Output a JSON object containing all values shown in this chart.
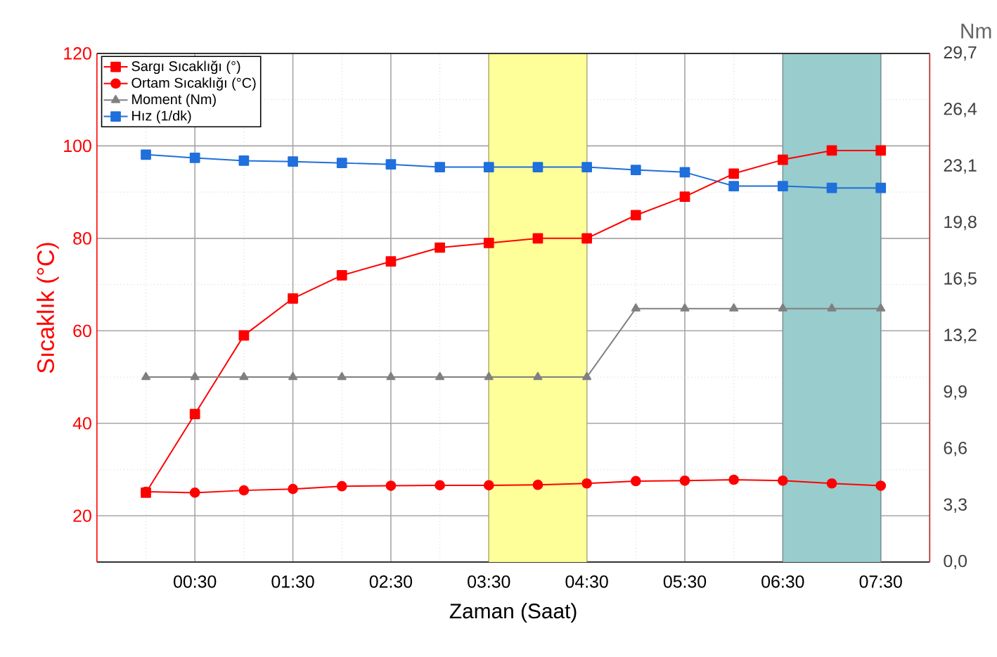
{
  "chart_data": {
    "type": "line",
    "xlabel": "Zaman (Saat)",
    "ylabel": "Sıcaklık (°C)",
    "y2label": "Nm",
    "x": [
      0,
      0.5,
      1,
      1.5,
      2,
      2.5,
      3,
      3.5,
      4,
      4.5,
      5,
      5.5,
      6,
      6.5,
      7,
      7.5
    ],
    "xlim": [
      -0.5,
      8
    ],
    "xticks": [
      {
        "value": 0.5,
        "label": "00:30"
      },
      {
        "value": 1.5,
        "label": "01:30"
      },
      {
        "value": 2.5,
        "label": "02:30"
      },
      {
        "value": 3.5,
        "label": "03:30"
      },
      {
        "value": 4.5,
        "label": "04:30"
      },
      {
        "value": 5.5,
        "label": "05:30"
      },
      {
        "value": 6.5,
        "label": "06:30"
      },
      {
        "value": 7.5,
        "label": "07:30"
      }
    ],
    "ylim": [
      10,
      120
    ],
    "yticks": [
      20,
      40,
      60,
      80,
      100,
      120
    ],
    "y2lim": [
      0,
      29.7
    ],
    "y2ticks": [
      {
        "value": 0,
        "label": "0,0"
      },
      {
        "value": 3.3,
        "label": "3,3"
      },
      {
        "value": 6.6,
        "label": "6,6"
      },
      {
        "value": 9.9,
        "label": "9,9"
      },
      {
        "value": 13.2,
        "label": "13,2"
      },
      {
        "value": 16.5,
        "label": "16,5"
      },
      {
        "value": 19.8,
        "label": "19,8"
      },
      {
        "value": 23.1,
        "label": "23,1"
      },
      {
        "value": 26.4,
        "label": "26,4"
      },
      {
        "value": 29.7,
        "label": "29,7"
      }
    ],
    "series": [
      {
        "name": "Sargı Sıcaklığı (°)",
        "color": "#ff0000",
        "marker": "square",
        "values": [
          25,
          42,
          59,
          67,
          72,
          75,
          78,
          79,
          80,
          80,
          85,
          89,
          94,
          97,
          99,
          99
        ]
      },
      {
        "name": "Ortam Sıcaklığı (°C)",
        "color": "#ff0000",
        "marker": "circle",
        "values": [
          25.2,
          25,
          25.5,
          25.8,
          26.4,
          26.5,
          26.6,
          26.6,
          26.7,
          27,
          27.5,
          27.6,
          27.8,
          27.6,
          27,
          26.5
        ]
      },
      {
        "name": "Moment (Nm)",
        "color": "#808080",
        "marker": "triangle",
        "axis": "y2",
        "values": [
          10.8,
          10.8,
          10.8,
          10.8,
          10.8,
          10.8,
          10.8,
          10.8,
          10.8,
          10.8,
          14.8,
          14.8,
          14.8,
          14.8,
          14.8,
          14.8
        ]
      },
      {
        "name": "Hız (1/dk)",
        "color": "#1f6fdc",
        "marker": "square",
        "values": [
          98.1,
          97.4,
          96.8,
          96.6,
          96.3,
          96,
          95.4,
          95.4,
          95.4,
          95.4,
          94.8,
          94.3,
          91.3,
          91.3,
          90.9,
          90.9
        ]
      }
    ],
    "bands": [
      {
        "axis": "x",
        "from": 3.5,
        "to": 4.5,
        "color": "#ffff99"
      },
      {
        "axis": "x",
        "from": 6.5,
        "to": 7.5,
        "color": "#99cccc"
      }
    ],
    "grid": true,
    "legend": "top left",
    "line_style": "solid"
  }
}
